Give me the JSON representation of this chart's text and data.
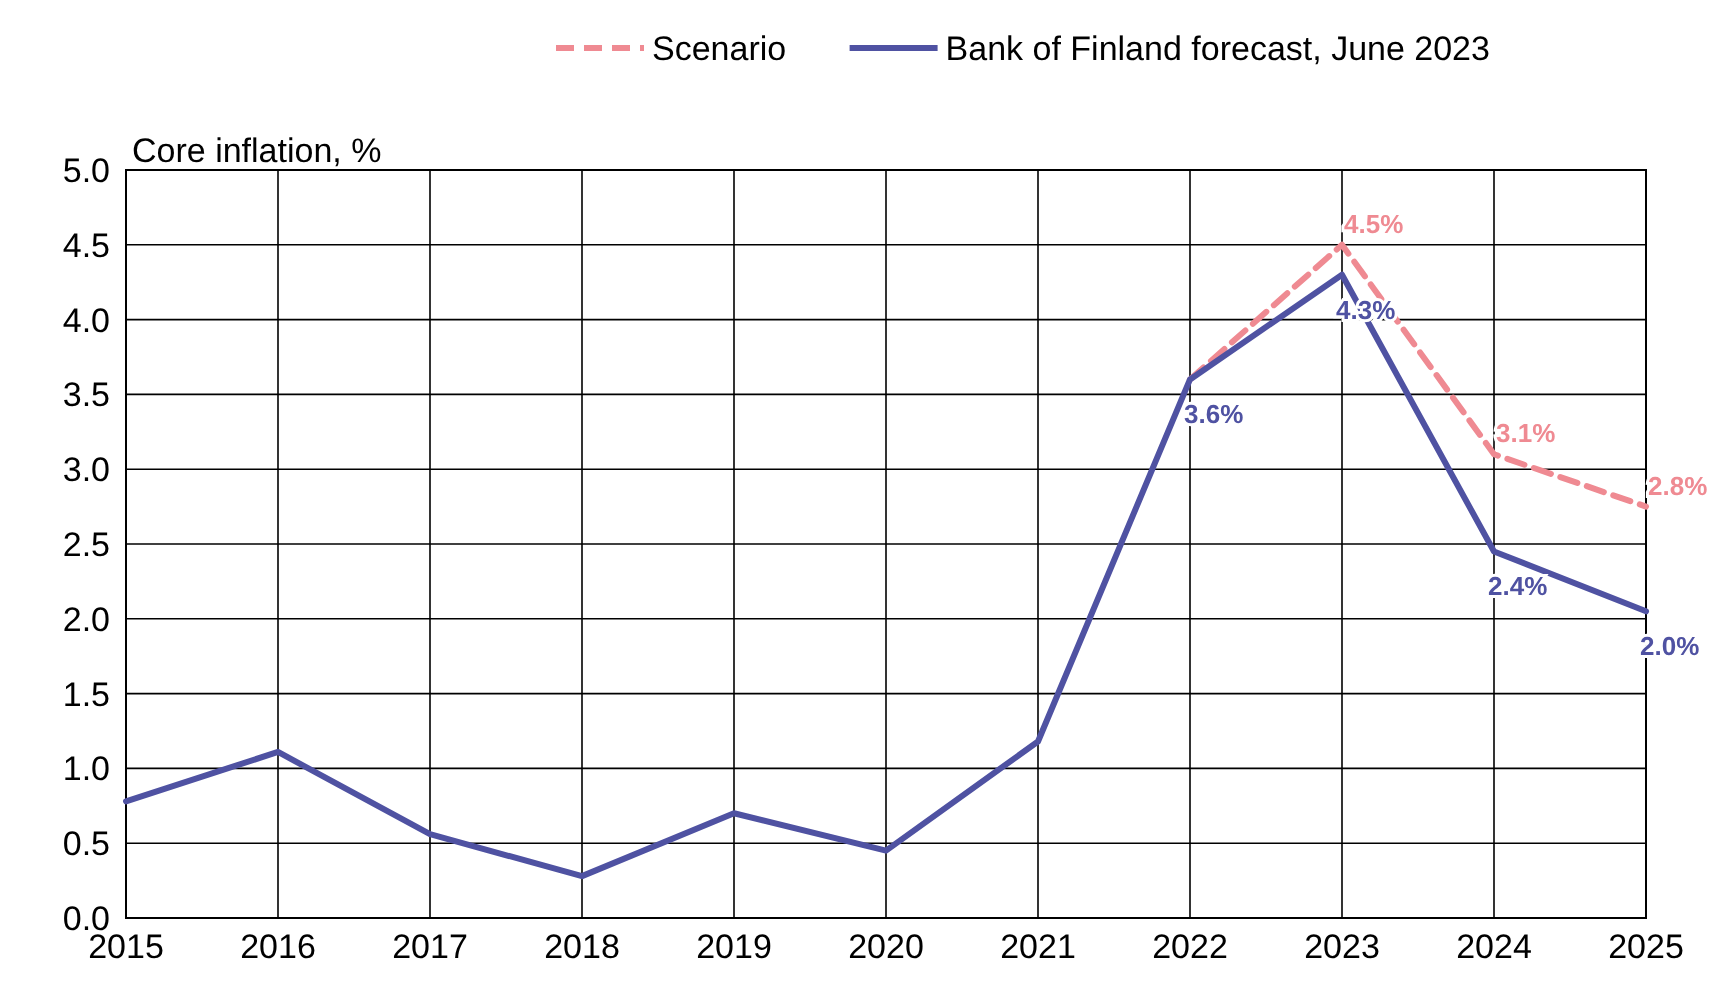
{
  "chart_data": {
    "type": "line",
    "ylabel": "Core inflation, %",
    "xlim": [
      2015,
      2025
    ],
    "xticks": [
      2015,
      2016,
      2017,
      2018,
      2019,
      2020,
      2021,
      2022,
      2023,
      2024,
      2025
    ],
    "ylim": [
      0,
      5
    ],
    "yticks": [
      {
        "value": 0,
        "label": "0.0"
      },
      {
        "value": 0.5,
        "label": "0.5"
      },
      {
        "value": 1,
        "label": "1.0"
      },
      {
        "value": 1.5,
        "label": "1.5"
      },
      {
        "value": 2,
        "label": "2.0"
      },
      {
        "value": 2.5,
        "label": "2.5"
      },
      {
        "value": 3,
        "label": "3.0"
      },
      {
        "value": 3.5,
        "label": "3.5"
      },
      {
        "value": 4,
        "label": "4.0"
      },
      {
        "value": 4.5,
        "label": "4.5"
      },
      {
        "value": 5,
        "label": "5.0"
      }
    ],
    "grid": true,
    "legend": "top",
    "marker": "none",
    "series": [
      {
        "name": "Scenario",
        "color": "#ef8a92",
        "line_style": "dashed",
        "x": [
          2022,
          2023,
          2024,
          2025
        ],
        "values": [
          3.6,
          4.5,
          3.1,
          2.75
        ],
        "value_labels": [
          null,
          "4.5%",
          "3.1%",
          "2.8%"
        ]
      },
      {
        "name": "Bank of Finland forecast, June 2023",
        "color": "#4f52a2",
        "line_style": "solid",
        "x": [
          2015,
          2016,
          2017,
          2018,
          2019,
          2020,
          2021,
          2022,
          2023,
          2024,
          2025
        ],
        "values": [
          0.78,
          1.11,
          0.56,
          0.28,
          0.7,
          0.45,
          1.18,
          3.6,
          4.3,
          2.45,
          2.05
        ],
        "value_labels": [
          null,
          null,
          null,
          null,
          null,
          null,
          null,
          "3.6%",
          "4.3%",
          "2.4%",
          "2.0%"
        ]
      }
    ]
  }
}
